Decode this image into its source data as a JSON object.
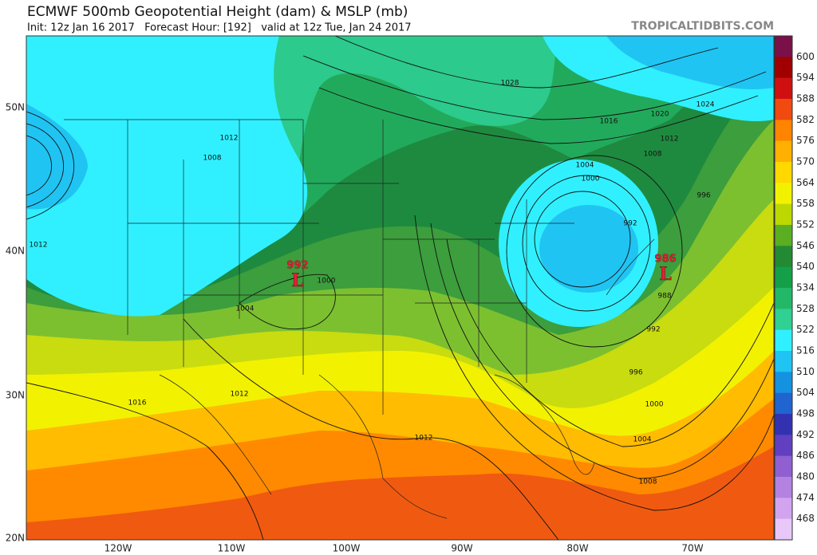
{
  "header": {
    "title": "ECMWF 500mb Geopotential Height (dam) & MSLP (mb)",
    "subtitle": "Init: 12z Jan 16 2017   Forecast Hour: [192]   valid at 12z Tue, Jan 24 2017",
    "source": "TROPICALTIDBITS.COM"
  },
  "colorbar": {
    "labels": [
      600,
      594,
      588,
      582,
      576,
      570,
      564,
      558,
      552,
      546,
      540,
      534,
      528,
      522,
      516,
      510,
      504,
      498,
      492,
      486,
      480,
      474,
      468
    ],
    "colors": [
      "#7a1048",
      "#a00000",
      "#d01010",
      "#f04a10",
      "#ff8400",
      "#ffb000",
      "#ffd800",
      "#f2f200",
      "#bcd800",
      "#5aae22",
      "#238a34",
      "#14a048",
      "#22b868",
      "#30d092",
      "#30f0ff",
      "#20c4f2",
      "#1492e0",
      "#2064d0",
      "#3232b0",
      "#6040c0",
      "#9060d0",
      "#b482e0",
      "#d2a4f0",
      "#e8c8f8"
    ]
  },
  "latitude_labels": [
    "50N",
    "40N",
    "30N",
    "20N"
  ],
  "longitude_labels": [
    "120W",
    "110W",
    "100W",
    "90W",
    "80W",
    "70W"
  ],
  "isobar_labels": [
    1028,
    1024,
    1020,
    1016,
    1012,
    1008,
    1004,
    1000,
    996,
    992,
    988,
    992,
    996,
    1000,
    1004,
    1008,
    1012,
    1012,
    1016,
    1012,
    1012,
    1008,
    1004,
    1000
  ],
  "lows": [
    {
      "pressure": 992,
      "symbol": "L"
    },
    {
      "pressure": 986,
      "symbol": "L"
    }
  ]
}
